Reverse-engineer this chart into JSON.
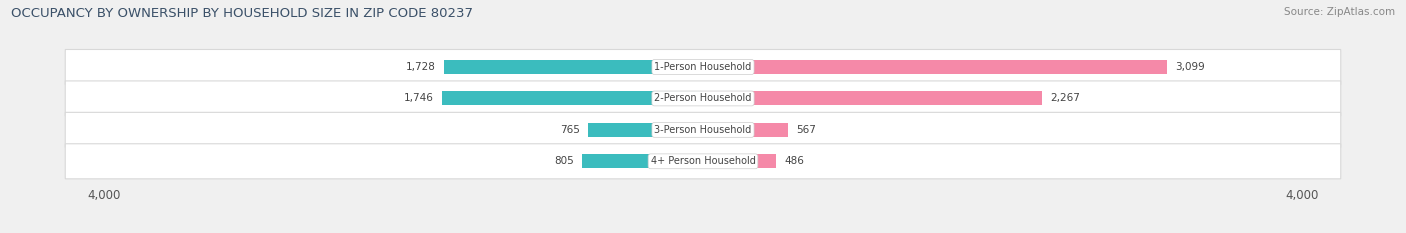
{
  "title": "OCCUPANCY BY OWNERSHIP BY HOUSEHOLD SIZE IN ZIP CODE 80237",
  "source": "Source: ZipAtlas.com",
  "categories": [
    "1-Person Household",
    "2-Person Household",
    "3-Person Household",
    "4+ Person Household"
  ],
  "owner_values": [
    1728,
    1746,
    765,
    805
  ],
  "renter_values": [
    3099,
    2267,
    567,
    486
  ],
  "owner_color": "#3bbcbe",
  "renter_color": "#f589a8",
  "xlim": 4000,
  "background_color": "#f0f0f0",
  "bar_background": "#ffffff",
  "title_fontsize": 9.5,
  "source_fontsize": 7.5,
  "tick_fontsize": 8.5,
  "bar_label_fontsize": 7.5,
  "cat_label_fontsize": 7.0
}
